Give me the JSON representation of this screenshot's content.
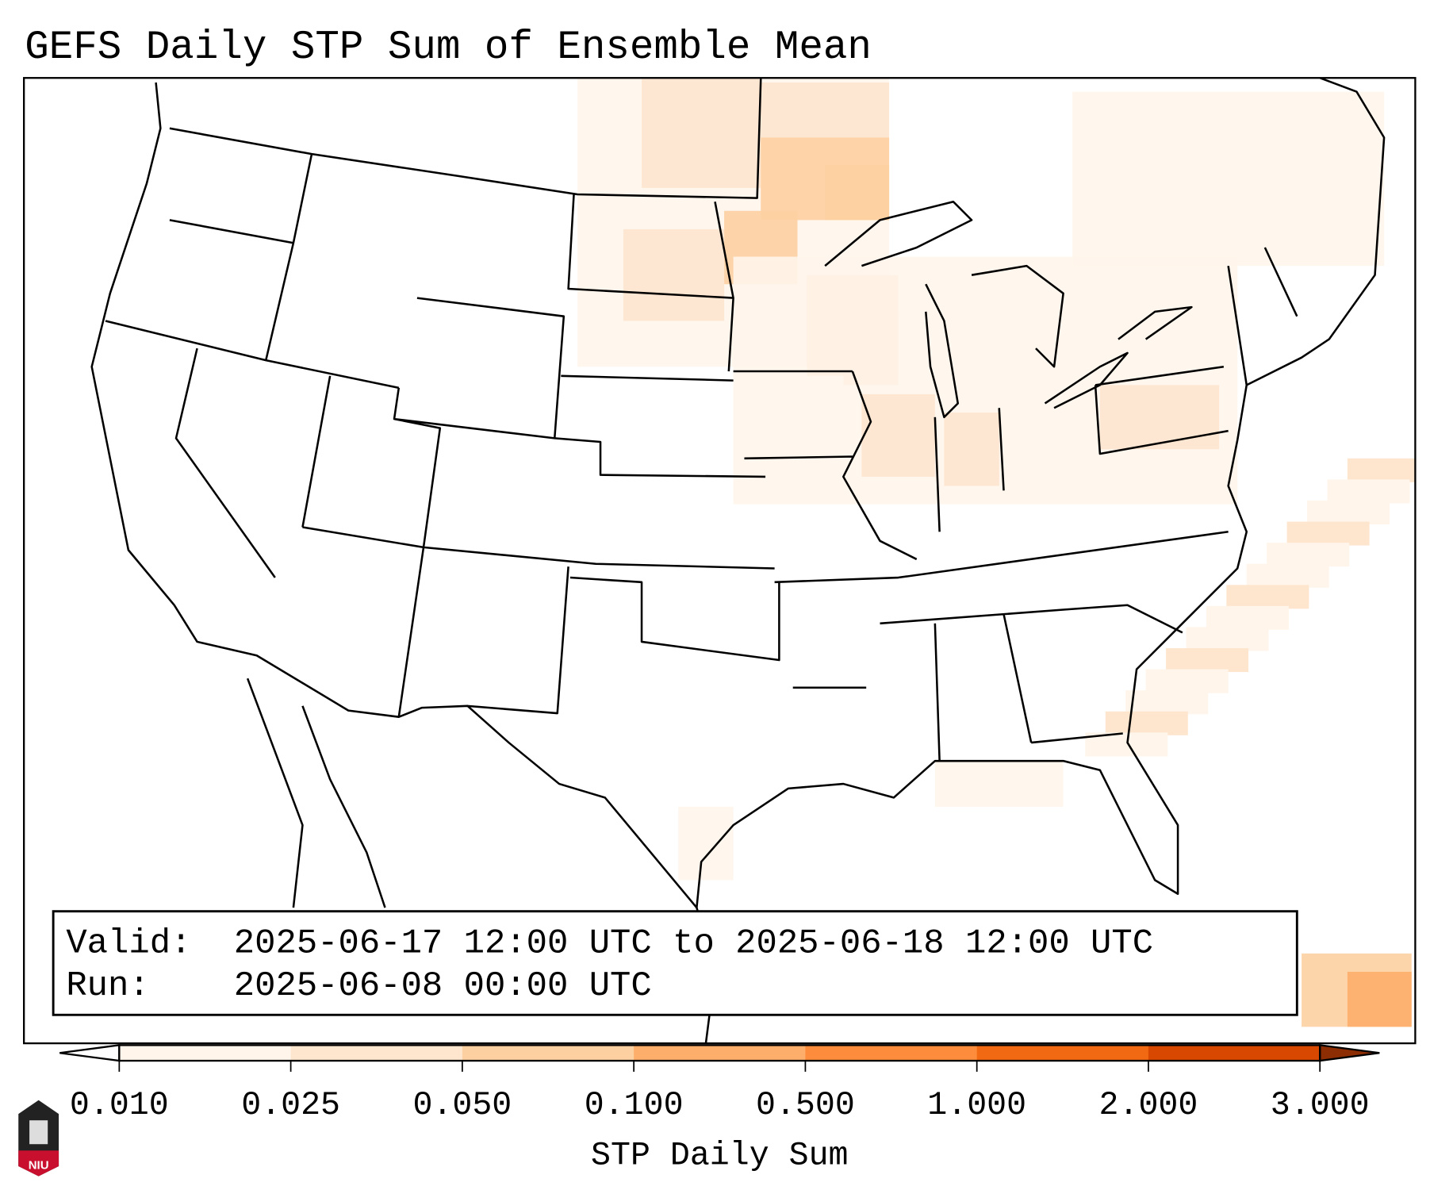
{
  "title": "GEFS Daily STP Sum of Ensemble Mean",
  "info": {
    "valid_label": "Valid:",
    "valid_value": "2025-06-17 12:00 UTC to 2025-06-18 12:00 UTC",
    "run_label": "Run:",
    "run_value": "2025-06-08 00:00 UTC"
  },
  "colorbar": {
    "label": "STP Daily Sum",
    "ticks": [
      "0.010",
      "0.025",
      "0.050",
      "0.100",
      "0.500",
      "1.000",
      "2.000",
      "3.000"
    ],
    "colors": [
      "#fff5eb",
      "#fee6ce",
      "#fdd0a2",
      "#fdae6b",
      "#fd8d3c",
      "#f16913",
      "#d94801"
    ],
    "under_color": "#ffffff",
    "over_color": "#8c2d04"
  },
  "logo": {
    "text": "NIU"
  }
}
